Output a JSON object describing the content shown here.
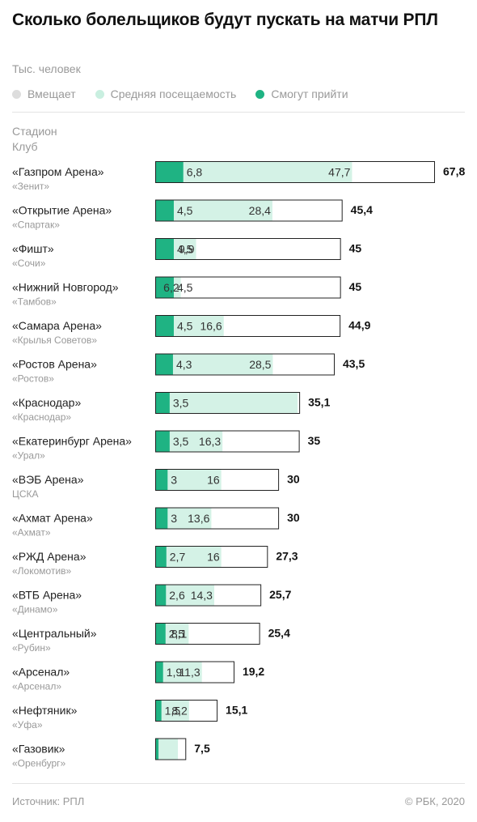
{
  "title": "Сколько болельщиков будут пускать на матчи РПЛ",
  "unit_label": "Тыс. человек",
  "legend": [
    {
      "name": "Вмещает",
      "color": "#dddddd"
    },
    {
      "name": "Средняя посещаемость",
      "color": "#c9efe0"
    },
    {
      "name": "Смогут прийти",
      "color": "#1fb383"
    }
  ],
  "header": {
    "stadium": "Стадион",
    "club": "Клуб"
  },
  "colors": {
    "capacity_outline": "#222222",
    "attendance": "#d4f2e6",
    "allowed": "#1fb383"
  },
  "chart_data": {
    "type": "bar",
    "orientation": "horizontal",
    "stacked": "overlay",
    "categories": [
      "«Газпром Арена»",
      "«Открытие Арена»",
      "«Фишт»",
      "«Нижний Новгород»",
      "«Самара Арена»",
      "«Ростов Арена»",
      "«Краснодар»",
      "«Екатеринбург Арена»",
      "«ВЭБ Арена»",
      "«Ахмат Арена»",
      "«РЖД Арена»",
      "«ВТБ Арена»",
      "«Центральный»",
      "«Арсенал»",
      "«Нефтяник»",
      "«Газовик»"
    ],
    "clubs": [
      "«Зенит»",
      "«Спартак»",
      "«Сочи»",
      "«Тамбов»",
      "«Крылья Советов»",
      "«Ростов»",
      "«Краснодар»",
      "«Урал»",
      "ЦСКА",
      "«Ахмат»",
      "«Локомотив»",
      "«Динамо»",
      "«Рубин»",
      "«Арсенал»",
      "«Уфа»",
      "«Оренбург»"
    ],
    "series": [
      {
        "name": "Вмещает",
        "values": [
          67.8,
          45.4,
          45,
          45,
          44.9,
          43.5,
          35.1,
          35,
          30,
          30,
          27.3,
          25.7,
          25.4,
          19.2,
          15.1,
          7.5
        ],
        "labels": [
          "67,8",
          "45,4",
          "45",
          "45",
          "44,9",
          "43,5",
          "35,1",
          "35",
          "30",
          "30",
          "27,3",
          "25,7",
          "25,4",
          "19,2",
          "15,1",
          "7,5"
        ]
      },
      {
        "name": "Средняя посещаемость",
        "values": [
          47.7,
          28.4,
          9.9,
          6.2,
          16.6,
          28.5,
          34.5,
          16.3,
          16,
          13.6,
          16,
          14.3,
          8.1,
          11.3,
          8.2,
          5.5
        ],
        "labels": [
          "47,7",
          "28,4",
          "9,9",
          "6,2",
          "16,6",
          "28,5",
          "",
          "16,3",
          "16",
          "13,6",
          "16",
          "14,3",
          "8,1",
          "11,3",
          "8,2",
          ""
        ]
      },
      {
        "name": "Смогут прийти",
        "values": [
          6.8,
          4.5,
          4.5,
          4.5,
          4.5,
          4.3,
          3.5,
          3.5,
          3,
          3,
          2.7,
          2.6,
          2.5,
          1.9,
          1.5,
          0.8
        ],
        "labels": [
          "6,8",
          "4,5",
          "4,5",
          "4,5",
          "4,5",
          "4,3",
          "3,5",
          "3,5",
          "3",
          "3",
          "2,7",
          "2,6",
          "2,5",
          "1,9",
          "1,5",
          ""
        ]
      }
    ]
  },
  "footer": {
    "source": "Источник: РПЛ",
    "copyright": "© РБК, 2020"
  }
}
